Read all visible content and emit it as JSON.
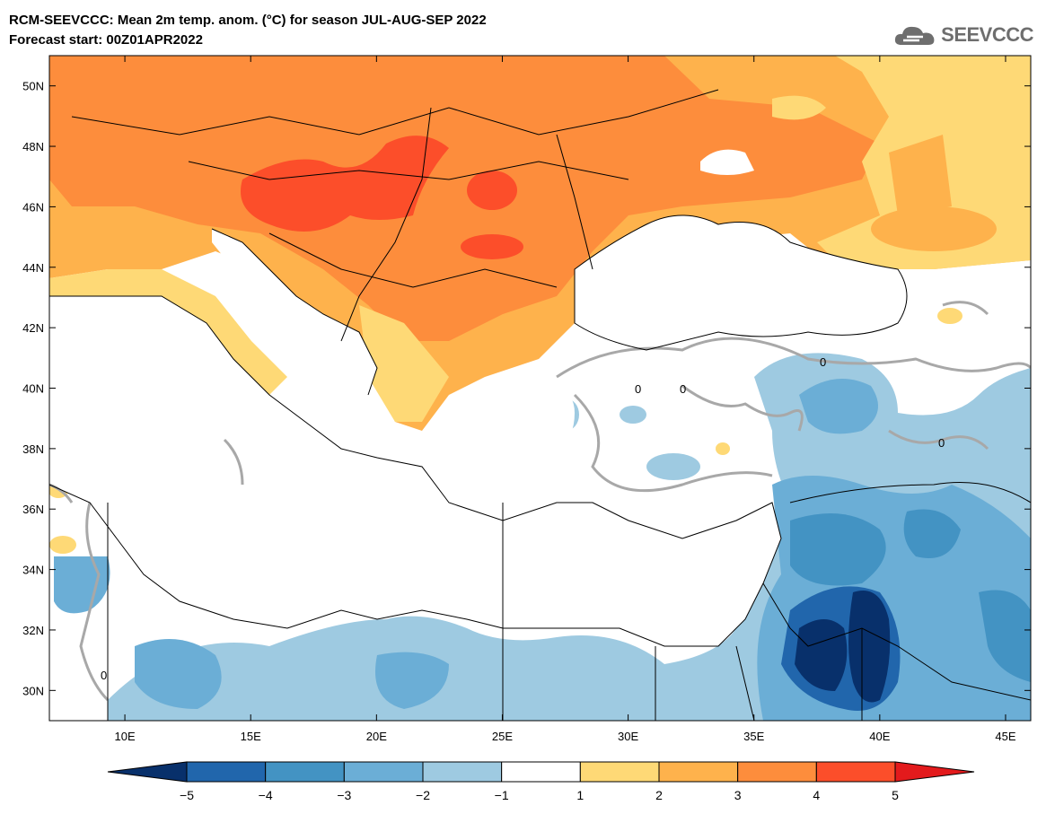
{
  "header": {
    "title_line1": "RCM-SEEVCCC: Mean 2m temp. anom. (°C) for season JUL-AUG-SEP 2022",
    "title_line2": "Forecast start: 00Z01APR2022"
  },
  "logo": {
    "text": "SEEVCCC",
    "icon": "cloud-icon",
    "color": "#6e6e6e"
  },
  "map": {
    "lon_range": [
      7,
      46
    ],
    "lat_range": [
      29,
      51
    ],
    "lon_ticks": [
      "10E",
      "15E",
      "20E",
      "25E",
      "30E",
      "35E",
      "40E",
      "45E"
    ],
    "lon_tick_values": [
      10,
      15,
      20,
      25,
      30,
      35,
      40,
      45
    ],
    "lat_ticks": [
      "30N",
      "32N",
      "34N",
      "36N",
      "38N",
      "40N",
      "42N",
      "44N",
      "46N",
      "48N",
      "50N"
    ],
    "lat_tick_values": [
      30,
      32,
      34,
      36,
      38,
      40,
      42,
      44,
      46,
      48,
      50
    ],
    "zero_contour_label": "0",
    "sea_color": "#ffffff",
    "contour_color": "#a8a8a8"
  },
  "colorbar": {
    "labels": [
      "-5",
      "-4",
      "-3",
      "-2",
      "-1",
      "1",
      "2",
      "3",
      "4",
      "5"
    ],
    "colors": [
      "#08306b",
      "#2166ac",
      "#4393c3",
      "#6baed6",
      "#9ecae1",
      "#ffffff",
      "#fed976",
      "#feb24c",
      "#fd8d3c",
      "#fc4e2a",
      "#e31a1c"
    ]
  }
}
